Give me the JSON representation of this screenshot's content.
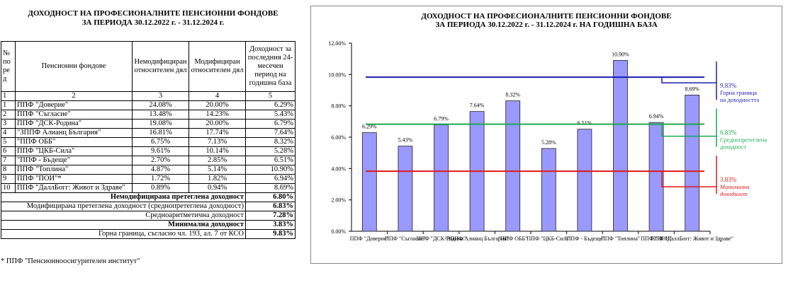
{
  "left_title": {
    "line1": "ДОХОДНОСТ НА ПРОФЕСИОНАЛНИТЕ ПЕНСИОННИ ФОНДОВЕ",
    "line2": "ЗА ПЕРИОДА  30.12.2022 г. - 31.12.2024 г."
  },
  "table": {
    "header": {
      "no": "№ по ре д",
      "fund": "Пенсионни фондове",
      "unmod": "Немодифициран относителен дял",
      "mod": "Модифициран относителен дял",
      "yield": "Доходност за последния 24-месечен период  на годишна база"
    },
    "col_numbers": [
      "1",
      "2",
      "3",
      "4",
      "5"
    ],
    "rows": [
      {
        "no": "1",
        "fund": "ППФ \"Доверие\"",
        "unmod": "24.08%",
        "mod": "20.00%",
        "yield": "6.29%"
      },
      {
        "no": "2",
        "fund": "ППФ \"Съгласие\"",
        "unmod": "13.48%",
        "mod": "14.23%",
        "yield": "5.43%"
      },
      {
        "no": "3",
        "fund": "ППФ \"ДСК-Родина\"",
        "unmod": "19.08%",
        "mod": "20.00%",
        "yield": "6.79%"
      },
      {
        "no": "4",
        "fund": "\"ЗППФ Алианц България\"",
        "unmod": "16.81%",
        "mod": "17.74%",
        "yield": "7.64%"
      },
      {
        "no": "5",
        "fund": "\"ППФ ОББ\"",
        "unmod": "6.75%",
        "mod": "7.13%",
        "yield": "8.32%"
      },
      {
        "no": "6",
        "fund": "ППФ \"ЦКБ-Сила\"",
        "unmod": "9.61%",
        "mod": "10.14%",
        "yield": "5.28%"
      },
      {
        "no": "7",
        "fund": "\"ППФ - Бъдеще\"",
        "unmod": "2.70%",
        "mod": "2.85%",
        "yield": "6.51%"
      },
      {
        "no": "8",
        "fund": "ППФ \"Топлина\"",
        "unmod": "4.87%",
        "mod": "5.14%",
        "yield": "10.90%"
      },
      {
        "no": "9",
        "fund": "ППФ \"ПОИ\"*",
        "unmod": "1.72%",
        "mod": "1.82%",
        "yield": "6.94%"
      },
      {
        "no": "10",
        "fund": "ППФ \"ДаллБогг: Живот и Здраве\"",
        "unmod": "0.89%",
        "mod": "0.94%",
        "yield": "8.69%"
      }
    ],
    "summary": [
      {
        "label": "Немодифицирана претеглена доходност",
        "value": "6.80%"
      },
      {
        "label": "Модифицирана претеглена доходност (среднопретеглена доходност)",
        "value": "6.83%"
      },
      {
        "label": "Средноаритметична доходност",
        "value": "7.28%"
      },
      {
        "label": "Минимална доходност",
        "value": "3.83%"
      },
      {
        "label": "Горна граница, съгласно чл. 193, ал. 7 от КСО",
        "value": "9.83%"
      }
    ]
  },
  "footnote": "* ППФ \"Пенсионноосигурителен институт\"",
  "chart_data": {
    "type": "bar",
    "title": "ДОХОДНОСТ НА ПРОФЕСИОНАЛНИТЕ ПЕНСИОННИ ФОНДОВЕ",
    "subtitle": "ЗА ПЕРИОДА  30.12.2022 г. - 31.12.2024 г. НА ГОДИШНА БАЗА",
    "categories": [
      "ППФ \"Доверие\"",
      "ППФ \"Съгласие\"",
      "ППФ \"ДСК-Родина\"",
      "\"ЗППФ Алианц България\"",
      "\"ППФ ОББ\"",
      "ППФ \"ЦКБ-Сила\"",
      "\"ППФ - Бъдеще\"",
      "ППФ \"Топлина\"",
      "ППФ \"ПОИ\"",
      "ППФ \"ДаллБогг: Живот и Здраве\""
    ],
    "values": [
      6.29,
      5.43,
      6.79,
      7.64,
      8.32,
      5.28,
      6.51,
      10.9,
      6.94,
      8.69
    ],
    "data_labels": [
      "6.29%",
      "5.43%",
      "6.79%",
      "7.64%",
      "8.32%",
      "5.28%",
      "6.51%",
      "10.90%",
      "6.94%",
      "8.69%"
    ],
    "yticks": [
      0,
      2,
      4,
      6,
      8,
      10,
      12
    ],
    "ytick_labels": [
      "0.00%",
      "2.00%",
      "4.00%",
      "6.00%",
      "8.00%",
      "10.00%",
      "12.00%"
    ],
    "ylim": [
      0,
      12
    ],
    "xlabel": "",
    "ylabel": "",
    "grid": false,
    "bar_color": "#9999ff",
    "reference_lines": [
      {
        "name": "upper",
        "value": 9.83,
        "value_label": "9.83%",
        "label_lines": [
          "Горна граница",
          "на доходността"
        ],
        "color": "#1c1cb0"
      },
      {
        "name": "weighted",
        "value": 6.83,
        "value_label": "6.83%",
        "label_lines": [
          "Среднопретеглена",
          "доходност"
        ],
        "color": "#1aa84e"
      },
      {
        "name": "minimum",
        "value": 3.83,
        "value_label": "3.83%",
        "label_lines": [
          "Минимална",
          "доходност"
        ],
        "color": "#e01818"
      }
    ]
  }
}
